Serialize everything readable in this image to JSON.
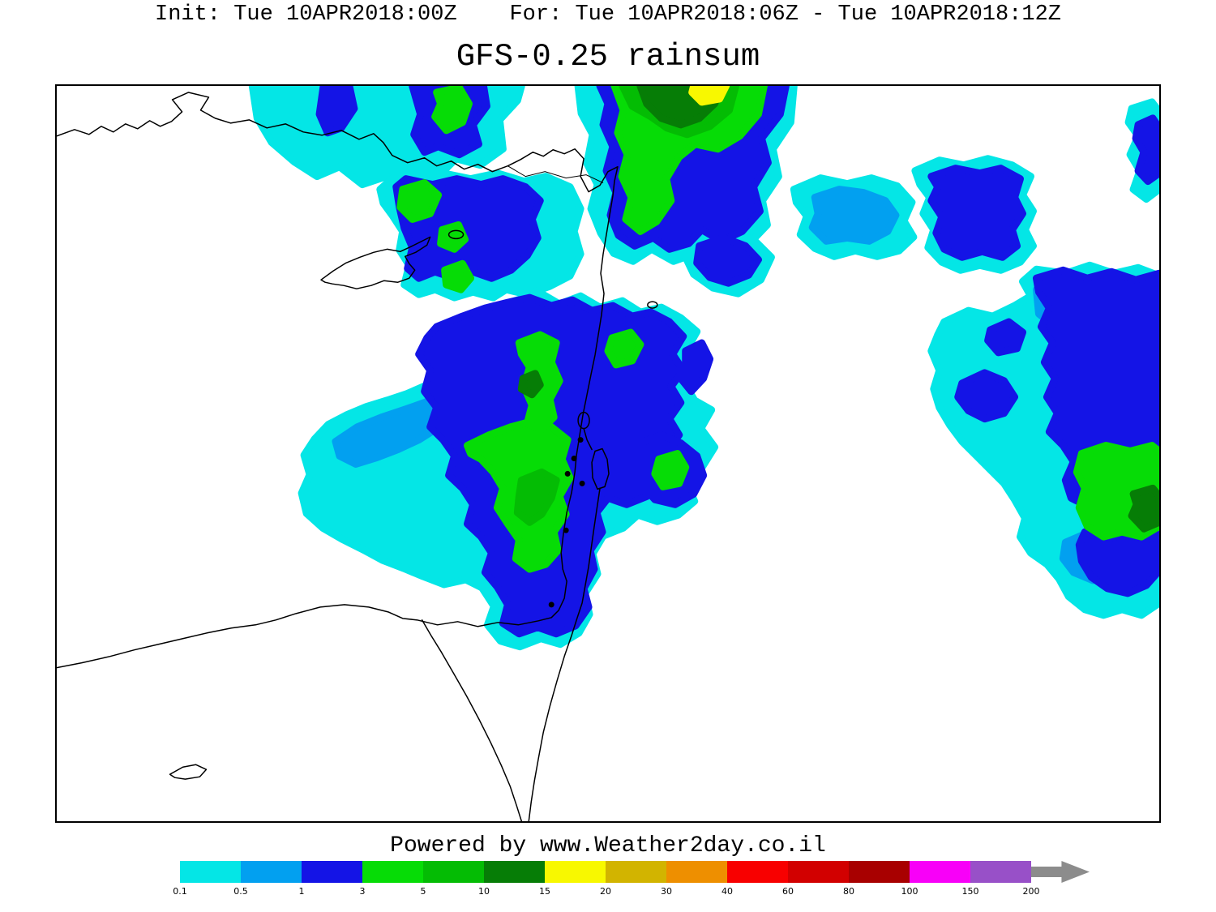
{
  "header": {
    "time_line": "Init: Tue 10APR2018:00Z    For: Tue 10APR2018:06Z - Tue 10APR2018:12Z",
    "title": "GFS-0.25 rainsum"
  },
  "footer": {
    "credit": "Powered by www.Weather2day.co.il"
  },
  "chart_data": {
    "type": "heatmap",
    "title": "GFS-0.25 rainsum",
    "model": "GFS-0.25",
    "variable": "rainsum",
    "init_time": "Tue 10APR2018:00Z",
    "valid_start": "Tue 10APR2018:06Z",
    "valid_end": "Tue 10APR2018:12Z",
    "legend_position": "bottom",
    "legend": {
      "tick_labels": [
        "0.1",
        "0.5",
        "1",
        "3",
        "5",
        "10",
        "15",
        "20",
        "30",
        "40",
        "60",
        "80",
        "100",
        "150",
        "200"
      ],
      "colors": [
        "#04e6e6",
        "#02a0f0",
        "#1414e6",
        "#06dc06",
        "#04bc04",
        "#067d06",
        "#f8f800",
        "#d2b400",
        "#ee8f00",
        "#f80000",
        "#d20000",
        "#a80000",
        "#f800f8",
        "#9850c8"
      ],
      "arrow_color": "#8c8c8c"
    },
    "shaded_levels_visible_on_map": [
      "0.1",
      "0.5",
      "1",
      "3",
      "5",
      "10",
      "15"
    ],
    "credit": "Powered by www.Weather2day.co.il"
  }
}
